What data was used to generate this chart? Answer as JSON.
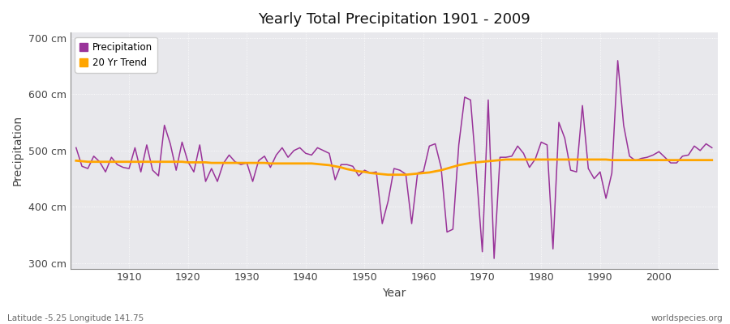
{
  "title": "Yearly Total Precipitation 1901 - 2009",
  "xlabel": "Year",
  "ylabel": "Precipitation",
  "footnote_left": "Latitude -5.25 Longitude 141.75",
  "footnote_right": "worldspecies.org",
  "line_color": "#993399",
  "trend_color": "#FFA500",
  "bg_color": "#FFFFFF",
  "plot_bg_color": "#E8E8EC",
  "ylim": [
    290,
    710
  ],
  "yticks": [
    300,
    400,
    500,
    600,
    700
  ],
  "ytick_labels": [
    "300 cm",
    "400 cm",
    "500 cm",
    "600 cm",
    "700 cm"
  ],
  "xlim": [
    1900,
    2010
  ],
  "xtick_positions": [
    1910,
    1920,
    1930,
    1940,
    1950,
    1960,
    1970,
    1980,
    1990,
    2000
  ],
  "years": [
    1901,
    1902,
    1903,
    1904,
    1905,
    1906,
    1907,
    1908,
    1909,
    1910,
    1911,
    1912,
    1913,
    1914,
    1915,
    1916,
    1917,
    1918,
    1919,
    1920,
    1921,
    1922,
    1923,
    1924,
    1925,
    1926,
    1927,
    1928,
    1929,
    1930,
    1931,
    1932,
    1933,
    1934,
    1935,
    1936,
    1937,
    1938,
    1939,
    1940,
    1941,
    1942,
    1943,
    1944,
    1945,
    1946,
    1947,
    1948,
    1949,
    1950,
    1951,
    1952,
    1953,
    1954,
    1955,
    1956,
    1957,
    1958,
    1959,
    1960,
    1961,
    1962,
    1963,
    1964,
    1965,
    1966,
    1967,
    1968,
    1969,
    1970,
    1971,
    1972,
    1973,
    1974,
    1975,
    1976,
    1977,
    1978,
    1979,
    1980,
    1981,
    1982,
    1983,
    1984,
    1985,
    1986,
    1987,
    1988,
    1989,
    1990,
    1991,
    1992,
    1993,
    1994,
    1995,
    1996,
    1997,
    1998,
    1999,
    2000,
    2001,
    2002,
    2003,
    2004,
    2005,
    2006,
    2007,
    2008,
    2009
  ],
  "precipitation": [
    505,
    472,
    468,
    490,
    480,
    462,
    488,
    475,
    470,
    468,
    505,
    462,
    510,
    465,
    455,
    545,
    512,
    465,
    515,
    480,
    462,
    510,
    445,
    468,
    445,
    477,
    492,
    480,
    475,
    478,
    445,
    482,
    490,
    470,
    492,
    505,
    488,
    500,
    505,
    495,
    492,
    505,
    500,
    495,
    448,
    475,
    475,
    472,
    455,
    465,
    460,
    462,
    370,
    410,
    468,
    465,
    458,
    370,
    460,
    463,
    508,
    512,
    470,
    355,
    360,
    510,
    595,
    590,
    460,
    320,
    590,
    308,
    488,
    488,
    490,
    508,
    495,
    470,
    485,
    515,
    510,
    325,
    550,
    522,
    465,
    462,
    580,
    468,
    450,
    462,
    415,
    460,
    660,
    545,
    490,
    482,
    486,
    488,
    492,
    498,
    488,
    478,
    478,
    490,
    492,
    508,
    500,
    512,
    505
  ],
  "trend": [
    482,
    481,
    480,
    480,
    480,
    480,
    480,
    480,
    480,
    480,
    480,
    480,
    480,
    480,
    480,
    480,
    480,
    480,
    480,
    479,
    479,
    479,
    479,
    478,
    478,
    478,
    478,
    478,
    478,
    478,
    478,
    478,
    478,
    477,
    477,
    477,
    477,
    477,
    477,
    477,
    477,
    476,
    475,
    474,
    472,
    470,
    467,
    465,
    463,
    462,
    460,
    459,
    458,
    457,
    457,
    457,
    457,
    458,
    459,
    460,
    461,
    463,
    465,
    468,
    471,
    474,
    476,
    478,
    479,
    480,
    481,
    482,
    483,
    484,
    484,
    484,
    484,
    484,
    484,
    484,
    484,
    484,
    484,
    484,
    484,
    484,
    484,
    484,
    484,
    484,
    484,
    483,
    483,
    483,
    483,
    483,
    483,
    483,
    483,
    483,
    483,
    483,
    483,
    483,
    483,
    483,
    483,
    483,
    483
  ]
}
